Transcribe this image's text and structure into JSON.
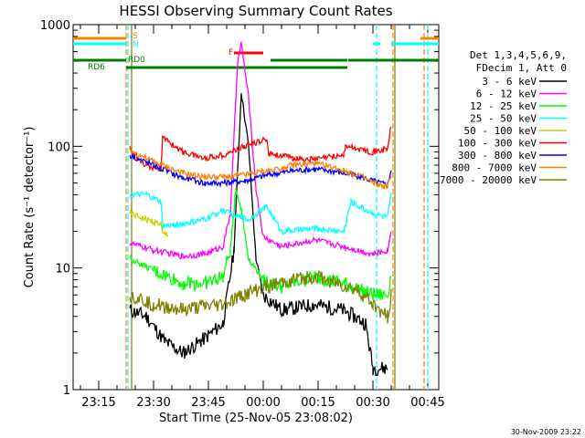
{
  "chart_data": {
    "type": "line",
    "title": "HESSI Observing Summary Count Rates",
    "xlabel": "Start Time (25-Nov-05 23:08:02)",
    "ylabel": "Count Rate (s⁻¹ detector⁻¹)",
    "yscale": "log",
    "ylim": [
      1,
      1000
    ],
    "xlim_minutes": [
      0,
      100
    ],
    "x_tick_labels": [
      "23:15",
      "23:30",
      "23:45",
      "00:00",
      "00:15",
      "00:30",
      "00:45"
    ],
    "x_tick_minutes": [
      7,
      22,
      37,
      52,
      67,
      82,
      97
    ],
    "y_tick_labels": [
      "1",
      "10",
      "100",
      "1000"
    ],
    "y_tick_values": [
      1,
      10,
      100,
      1000
    ],
    "legend_header": [
      "Det 1,3,4,5,6,9,",
      "FDecim 1, Att 0"
    ],
    "legend_position": "right",
    "series": [
      {
        "name": "3 - 6 keV",
        "color": "#000000",
        "base": [
          {
            "t": 15.5,
            "v": 4.5
          },
          {
            "t": 20,
            "v": 4
          },
          {
            "t": 25,
            "v": 2.5
          },
          {
            "t": 30,
            "v": 2
          },
          {
            "t": 35,
            "v": 2.5
          },
          {
            "t": 41,
            "v": 3.5
          },
          {
            "t": 44,
            "v": 14
          },
          {
            "t": 46,
            "v": 280
          },
          {
            "t": 48,
            "v": 100
          },
          {
            "t": 50,
            "v": 12
          },
          {
            "t": 52,
            "v": 6
          },
          {
            "t": 57,
            "v": 4.5
          },
          {
            "t": 66,
            "v": 5
          },
          {
            "t": 74,
            "v": 4.5
          },
          {
            "t": 80,
            "v": 3.5
          },
          {
            "t": 82,
            "v": 1.5
          },
          {
            "t": 86,
            "v": 1.5
          }
        ]
      },
      {
        "name": "6 - 12 keV",
        "color": "#ff00ff",
        "base": [
          {
            "t": 15.5,
            "v": 16
          },
          {
            "t": 22,
            "v": 14
          },
          {
            "t": 30,
            "v": 12.5
          },
          {
            "t": 36,
            "v": 13
          },
          {
            "t": 41,
            "v": 15
          },
          {
            "t": 43,
            "v": 28
          },
          {
            "t": 45,
            "v": 500
          },
          {
            "t": 46,
            "v": 700
          },
          {
            "t": 48,
            "v": 250
          },
          {
            "t": 50,
            "v": 45
          },
          {
            "t": 52,
            "v": 18
          },
          {
            "t": 57,
            "v": 15
          },
          {
            "t": 66,
            "v": 17
          },
          {
            "t": 74,
            "v": 15
          },
          {
            "t": 82,
            "v": 13
          },
          {
            "t": 86,
            "v": 14
          },
          {
            "t": 87,
            "v": 20
          }
        ]
      },
      {
        "name": "12 - 25 keV",
        "color": "#00ff00",
        "base": [
          {
            "t": 15.5,
            "v": 12
          },
          {
            "t": 22,
            "v": 9.5
          },
          {
            "t": 30,
            "v": 7.5
          },
          {
            "t": 36,
            "v": 7.5
          },
          {
            "t": 41,
            "v": 8.5
          },
          {
            "t": 43,
            "v": 14
          },
          {
            "t": 44.5,
            "v": 45
          },
          {
            "t": 46,
            "v": 30
          },
          {
            "t": 48,
            "v": 12
          },
          {
            "t": 52,
            "v": 8
          },
          {
            "t": 57,
            "v": 7
          },
          {
            "t": 66,
            "v": 8.5
          },
          {
            "t": 74,
            "v": 7.5
          },
          {
            "t": 82,
            "v": 6
          },
          {
            "t": 86,
            "v": 6
          },
          {
            "t": 87,
            "v": 9
          }
        ]
      },
      {
        "name": "25 - 50 keV",
        "color": "#00ffff",
        "base": [
          {
            "t": 15.5,
            "v": 40
          },
          {
            "t": 20,
            "v": 40
          },
          {
            "t": 24,
            "v": 35
          },
          {
            "t": 24.5,
            "v": 22
          },
          {
            "t": 30,
            "v": 23
          },
          {
            "t": 36,
            "v": 25
          },
          {
            "t": 41,
            "v": 30
          },
          {
            "t": 44,
            "v": 27
          },
          {
            "t": 48,
            "v": 25
          },
          {
            "t": 53,
            "v": 32
          },
          {
            "t": 57,
            "v": 20
          },
          {
            "t": 66,
            "v": 21
          },
          {
            "t": 74,
            "v": 20
          },
          {
            "t": 76,
            "v": 35
          },
          {
            "t": 82,
            "v": 28
          },
          {
            "t": 86,
            "v": 26
          },
          {
            "t": 87,
            "v": 40
          }
        ]
      },
      {
        "name": "50 - 100 keV",
        "color": "#cccc00",
        "base": [
          {
            "t": 15.5,
            "v": 28
          },
          {
            "t": 20,
            "v": 25
          },
          {
            "t": 24,
            "v": 23
          },
          {
            "t": 24.5,
            "v": 19
          },
          {
            "t": 26,
            "v": 19
          }
        ]
      },
      {
        "name": "100 - 300 keV",
        "color": "#ff0000",
        "base": [
          {
            "t": 15.5,
            "v": 95
          },
          {
            "t": 20,
            "v": 70
          },
          {
            "t": 24,
            "v": 65
          },
          {
            "t": 24.5,
            "v": 118
          },
          {
            "t": 30,
            "v": 90
          },
          {
            "t": 36,
            "v": 80
          },
          {
            "t": 41,
            "v": 85
          },
          {
            "t": 47,
            "v": 100
          },
          {
            "t": 53,
            "v": 115
          },
          {
            "t": 53.5,
            "v": 88
          },
          {
            "t": 60,
            "v": 80
          },
          {
            "t": 66,
            "v": 78
          },
          {
            "t": 74,
            "v": 85
          },
          {
            "t": 74.5,
            "v": 100
          },
          {
            "t": 82,
            "v": 90
          },
          {
            "t": 86,
            "v": 95
          },
          {
            "t": 87,
            "v": 150
          }
        ]
      },
      {
        "name": "300 - 800 keV",
        "color": "#0000ff",
        "base": [
          {
            "t": 15.5,
            "v": 85
          },
          {
            "t": 22,
            "v": 70
          },
          {
            "t": 30,
            "v": 55
          },
          {
            "t": 36,
            "v": 50
          },
          {
            "t": 41,
            "v": 50
          },
          {
            "t": 47,
            "v": 52
          },
          {
            "t": 53,
            "v": 58
          },
          {
            "t": 60,
            "v": 63
          },
          {
            "t": 66,
            "v": 65
          },
          {
            "t": 72,
            "v": 62
          },
          {
            "t": 78,
            "v": 57
          },
          {
            "t": 82,
            "v": 52
          },
          {
            "t": 86,
            "v": 48
          },
          {
            "t": 87,
            "v": 65
          }
        ]
      },
      {
        "name": "800 - 7000 keV",
        "color": "#ff8000",
        "base": [
          {
            "t": 15.5,
            "v": 92
          },
          {
            "t": 22,
            "v": 75
          },
          {
            "t": 30,
            "v": 60
          },
          {
            "t": 36,
            "v": 56
          },
          {
            "t": 41,
            "v": 56
          },
          {
            "t": 47,
            "v": 58
          },
          {
            "t": 53,
            "v": 63
          },
          {
            "t": 60,
            "v": 70
          },
          {
            "t": 66,
            "v": 72
          },
          {
            "t": 72,
            "v": 66
          },
          {
            "t": 78,
            "v": 58
          },
          {
            "t": 82,
            "v": 50
          },
          {
            "t": 86,
            "v": 46
          },
          {
            "t": 87,
            "v": 60
          }
        ]
      },
      {
        "name": "7000 - 20000 keV",
        "color": "#808000",
        "base": [
          {
            "t": 15.5,
            "v": 6
          },
          {
            "t": 22,
            "v": 5
          },
          {
            "t": 30,
            "v": 4.5
          },
          {
            "t": 36,
            "v": 4.8
          },
          {
            "t": 41,
            "v": 5
          },
          {
            "t": 47,
            "v": 6
          },
          {
            "t": 53,
            "v": 7
          },
          {
            "t": 60,
            "v": 8
          },
          {
            "t": 66,
            "v": 8.5
          },
          {
            "t": 72,
            "v": 7.5
          },
          {
            "t": 78,
            "v": 6.5
          },
          {
            "t": 82,
            "v": 5
          },
          {
            "t": 86,
            "v": 4
          },
          {
            "t": 87,
            "v": 6
          }
        ]
      }
    ],
    "state_bars": [
      {
        "label": "S",
        "color": "#ff8000",
        "segments": [
          [
            0,
            14.5
          ],
          [
            95,
            100
          ]
        ]
      },
      {
        "label": "N",
        "color": "#00ffff",
        "segments": [
          [
            0,
            14.5
          ],
          [
            82,
            84
          ],
          [
            87,
            100
          ]
        ]
      },
      {
        "label": "F",
        "color": "#ff0000",
        "segments": [
          [
            44,
            52
          ]
        ]
      },
      {
        "label": "RD0",
        "color": "#008000",
        "segments": [
          [
            0,
            14.5
          ],
          [
            54,
            75
          ],
          [
            75.2,
            100
          ]
        ]
      },
      {
        "label": "RD6",
        "color": "#008000",
        "segments": [
          [
            14.5,
            25
          ],
          [
            25,
            54
          ],
          [
            54,
            75
          ]
        ]
      }
    ],
    "vertical_markers": [
      {
        "color": "#00ffff",
        "minutes": [
          15,
          83,
          97
        ],
        "dashed": true
      },
      {
        "color": "#ff8000",
        "minutes": [
          14.5,
          87.5,
          96
        ],
        "dashed": true
      },
      {
        "color": "#808000",
        "minutes": [
          16,
          88
        ],
        "dashed": false
      }
    ]
  },
  "footer_date": "30-Nov-2009 23:22"
}
